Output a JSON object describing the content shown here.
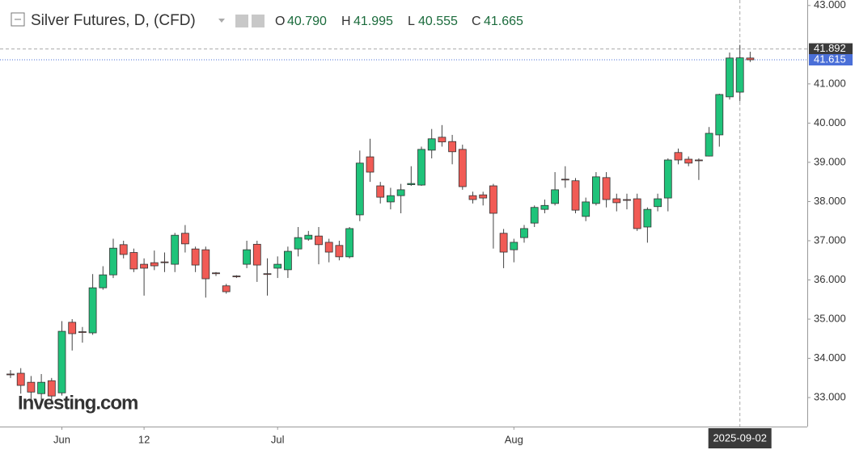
{
  "chart_data": {
    "type": "candlestick",
    "title": "Silver Futures, D, (CFD)",
    "ohlc_header": [
      {
        "key": "O",
        "value": "40.790"
      },
      {
        "key": "H",
        "value": "41.995"
      },
      {
        "key": "L",
        "value": "40.555"
      },
      {
        "key": "C",
        "value": "41.665"
      }
    ],
    "watermark": "Investing.com",
    "categories": [
      null,
      null,
      null,
      null,
      null,
      "Jun",
      null,
      null,
      null,
      null,
      null,
      null,
      null,
      "12",
      null,
      null,
      null,
      null,
      null,
      null,
      null,
      null,
      null,
      null,
      null,
      null,
      "Jul",
      null,
      null,
      null,
      null,
      null,
      null,
      null,
      null,
      null,
      null,
      null,
      null,
      null,
      null,
      null,
      null,
      null,
      null,
      null,
      null,
      null,
      null,
      "Aug",
      null,
      null,
      null,
      null,
      null,
      null,
      null,
      null,
      null,
      null,
      null,
      null,
      null,
      null,
      null,
      null,
      null,
      null,
      null,
      null,
      null,
      "2025-09-02",
      null
    ],
    "open": [
      33.6,
      33.62,
      33.39,
      33.1,
      33.43,
      33.12,
      34.92,
      34.68,
      34.65,
      35.8,
      36.13,
      36.9,
      36.7,
      36.4,
      36.44,
      36.46,
      36.4,
      37.19,
      36.79,
      36.77,
      36.18,
      35.85,
      36.1,
      36.4,
      36.91,
      36.16,
      36.3,
      36.26,
      36.79,
      37.04,
      37.12,
      36.96,
      36.88,
      36.59,
      37.66,
      39.14,
      38.4,
      37.99,
      38.15,
      38.43,
      38.42,
      39.31,
      39.64,
      39.53,
      39.33,
      38.15,
      38.17,
      38.4,
      37.19,
      36.77,
      37.08,
      37.45,
      37.8,
      37.95,
      38.57,
      38.53,
      37.62,
      37.95,
      38.61,
      38.07,
      38.05,
      38.07,
      37.35,
      37.87,
      38.09,
      39.25,
      39.08,
      39.06,
      39.16,
      39.7,
      40.67,
      40.79,
      41.66
    ],
    "high": [
      33.7,
      33.75,
      33.55,
      33.6,
      33.5,
      34.95,
      35.0,
      34.8,
      36.15,
      36.35,
      37.05,
      37.0,
      36.8,
      36.55,
      36.75,
      36.7,
      37.2,
      37.4,
      36.85,
      36.85,
      36.2,
      35.9,
      36.12,
      37.0,
      37.0,
      36.55,
      36.6,
      36.85,
      37.35,
      37.25,
      37.35,
      37.05,
      37.0,
      37.35,
      39.3,
      39.6,
      38.5,
      38.35,
      38.45,
      38.9,
      39.4,
      39.85,
      39.95,
      39.7,
      39.45,
      38.25,
      38.25,
      38.45,
      37.3,
      37.05,
      37.4,
      37.9,
      38.05,
      38.75,
      38.9,
      38.6,
      38.1,
      38.75,
      38.75,
      38.2,
      38.2,
      38.2,
      37.85,
      38.2,
      39.1,
      39.35,
      39.15,
      39.1,
      39.9,
      40.75,
      41.8,
      41.995,
      41.82
    ],
    "low": [
      33.5,
      33.1,
      32.95,
      32.95,
      32.9,
      33.05,
      34.2,
      34.4,
      34.6,
      35.75,
      36.05,
      36.55,
      36.2,
      35.6,
      36.25,
      36.2,
      36.2,
      36.7,
      36.2,
      35.55,
      36.1,
      35.65,
      36.05,
      36.3,
      35.95,
      35.6,
      36.05,
      36.05,
      36.6,
      37.0,
      36.4,
      36.45,
      36.5,
      36.55,
      37.5,
      38.5,
      37.95,
      37.8,
      37.7,
      38.4,
      38.4,
      39.1,
      39.4,
      38.95,
      38.3,
      37.95,
      37.9,
      36.8,
      36.3,
      36.45,
      36.95,
      37.35,
      37.7,
      37.9,
      38.35,
      37.7,
      37.5,
      37.9,
      37.85,
      37.75,
      37.8,
      37.25,
      36.95,
      37.75,
      37.75,
      38.95,
      38.9,
      38.55,
      39.15,
      39.4,
      40.6,
      40.555,
      41.56
    ],
    "close": [
      33.58,
      33.31,
      33.14,
      33.39,
      33.04,
      34.69,
      34.63,
      34.66,
      35.8,
      36.13,
      36.81,
      36.65,
      36.28,
      36.3,
      36.36,
      36.44,
      37.14,
      36.92,
      36.38,
      36.03,
      36.16,
      35.7,
      36.09,
      36.77,
      36.38,
      36.14,
      36.4,
      36.73,
      37.08,
      37.14,
      36.9,
      36.71,
      36.59,
      37.31,
      38.98,
      38.75,
      38.11,
      38.15,
      38.3,
      38.46,
      39.33,
      39.6,
      39.52,
      39.27,
      38.38,
      38.05,
      38.09,
      37.7,
      36.71,
      36.96,
      37.31,
      37.85,
      37.9,
      38.3,
      38.55,
      37.78,
      37.99,
      38.63,
      38.05,
      37.97,
      38.04,
      37.31,
      37.8,
      38.07,
      39.06,
      39.06,
      38.98,
      39.05,
      39.74,
      40.73,
      41.66,
      41.665,
      41.615
    ],
    "up_color": "#1fc37a",
    "down_color": "#f15b55",
    "ylim": [
      32.26,
      43.14
    ],
    "yticks": [
      {
        "value": 33,
        "label": "33.000"
      },
      {
        "value": 34,
        "label": "34.000"
      },
      {
        "value": 35,
        "label": "35.000"
      },
      {
        "value": 36,
        "label": "36.000"
      },
      {
        "value": 37,
        "label": "37.000"
      },
      {
        "value": 38,
        "label": "38.000"
      },
      {
        "value": 39,
        "label": "39.000"
      },
      {
        "value": 40,
        "label": "40.000"
      },
      {
        "value": 41,
        "label": "41.000"
      },
      {
        "value": 43,
        "label": "43.000"
      }
    ],
    "crosshair_price": {
      "value": 41.892,
      "label": "41.892"
    },
    "last_price": {
      "value": 41.615,
      "label": "41.615"
    },
    "crosshair_index": 71,
    "grid": false
  }
}
